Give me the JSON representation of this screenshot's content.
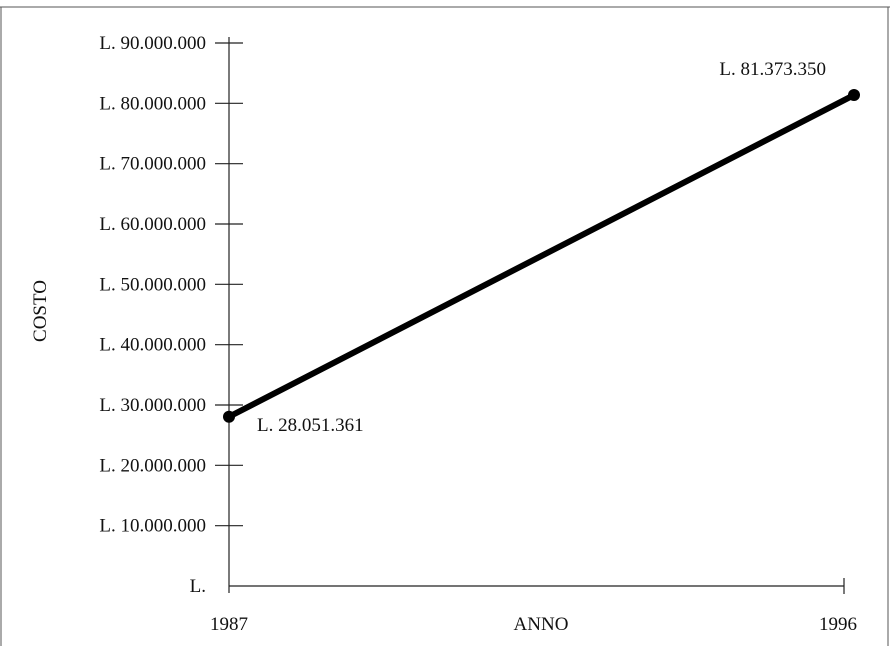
{
  "chart_data": {
    "type": "line",
    "title": "",
    "xlabel": "ANNO",
    "ylabel": "COSTO",
    "x_tick_labels": [
      "1987",
      "1996"
    ],
    "y_tick_labels": [
      "L.",
      "L. 10.000.000",
      "L. 20.000.000",
      "L. 30.000.000",
      "L. 40.000.000",
      "L. 50.000.000",
      "L. 60.000.000",
      "L. 70.000.000",
      "L. 80.000.000",
      "L. 90.000.000"
    ],
    "y_tick_values": [
      0,
      10000000,
      20000000,
      30000000,
      40000000,
      50000000,
      60000000,
      70000000,
      80000000,
      90000000
    ],
    "x": [
      1987,
      1996
    ],
    "xlim": [
      1987,
      1996
    ],
    "ylim": [
      0,
      90000000
    ],
    "series": [
      {
        "values": [
          28051361,
          81373350
        ],
        "data_labels": [
          "L. 28.051.361",
          "L. 81.373.350"
        ]
      }
    ],
    "grid": false,
    "legend": "none",
    "line_color": "#000000"
  }
}
